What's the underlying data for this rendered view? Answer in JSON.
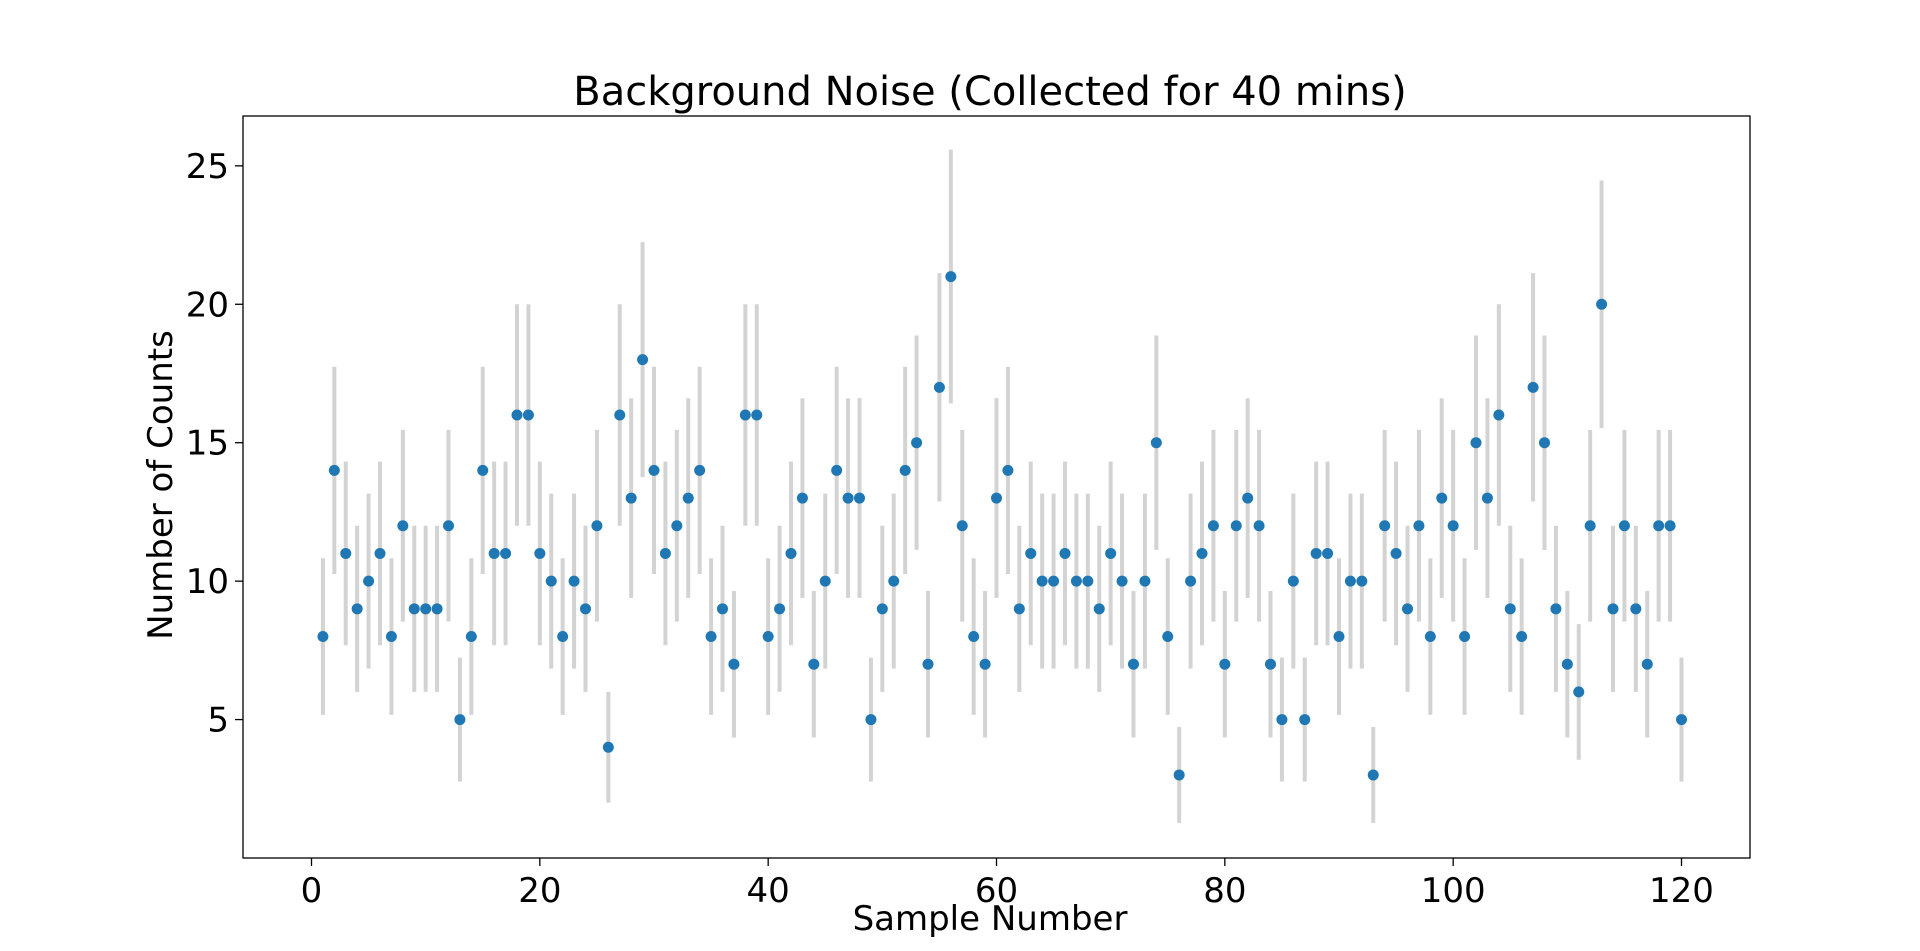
{
  "colors": {
    "point": "#1f77b4",
    "errorbar": "#d3d3d3",
    "axes": "#000000",
    "background": "#ffffff"
  },
  "chart_data": {
    "type": "scatter",
    "title": "Background Noise (Collected for 40 mins)",
    "xlabel": "Sample Number",
    "ylabel": "Number of Counts",
    "xlim": [
      -6,
      126
    ],
    "ylim": [
      0,
      26.8
    ],
    "x_ticks": [
      0,
      20,
      40,
      60,
      80,
      100,
      120
    ],
    "y_ticks": [
      5,
      10,
      15,
      20,
      25
    ],
    "x_tick_labels": [
      "0",
      "20",
      "40",
      "60",
      "80",
      "100",
      "120"
    ],
    "y_tick_labels": [
      "5",
      "10",
      "15",
      "20",
      "25"
    ],
    "grid": false,
    "legend": "none",
    "error_bars": "sqrt(counts)",
    "x": [
      1,
      2,
      3,
      4,
      5,
      6,
      7,
      8,
      9,
      10,
      11,
      12,
      13,
      14,
      15,
      16,
      17,
      18,
      19,
      20,
      21,
      22,
      23,
      24,
      25,
      26,
      27,
      28,
      29,
      30,
      31,
      32,
      33,
      34,
      35,
      36,
      37,
      38,
      39,
      40,
      41,
      42,
      43,
      44,
      45,
      46,
      47,
      48,
      49,
      50,
      51,
      52,
      53,
      54,
      55,
      56,
      57,
      58,
      59,
      60,
      61,
      62,
      63,
      64,
      65,
      66,
      67,
      68,
      69,
      70,
      71,
      72,
      73,
      74,
      75,
      76,
      77,
      78,
      79,
      80,
      81,
      82,
      83,
      84,
      85,
      86,
      87,
      88,
      89,
      90,
      91,
      92,
      93,
      94,
      95,
      96,
      97,
      98,
      99,
      100,
      101,
      102,
      103,
      104,
      105,
      106,
      107,
      108,
      109,
      110,
      111,
      112,
      113,
      114,
      115,
      116,
      117,
      118,
      119,
      120
    ],
    "y": [
      8,
      14,
      11,
      9,
      10,
      11,
      8,
      12,
      9,
      9,
      9,
      12,
      5,
      8,
      14,
      11,
      11,
      16,
      16,
      11,
      10,
      8,
      10,
      9,
      12,
      4,
      16,
      13,
      18,
      14,
      11,
      12,
      13,
      14,
      8,
      9,
      7,
      16,
      16,
      8,
      9,
      11,
      13,
      7,
      10,
      14,
      13,
      13,
      5,
      9,
      10,
      14,
      15,
      7,
      17,
      21,
      12,
      8,
      7,
      13,
      14,
      9,
      11,
      10,
      10,
      11,
      10,
      10,
      9,
      11,
      10,
      7,
      10,
      15,
      8,
      3,
      10,
      11,
      12,
      7,
      12,
      13,
      12,
      7,
      5,
      10,
      5,
      11,
      11,
      8,
      10,
      10,
      3,
      12,
      11,
      9,
      12,
      8,
      13,
      12,
      8,
      15,
      13,
      16,
      9,
      8,
      17,
      15,
      9,
      7,
      6,
      12,
      20,
      9,
      12,
      9,
      7,
      12,
      12,
      5
    ]
  }
}
